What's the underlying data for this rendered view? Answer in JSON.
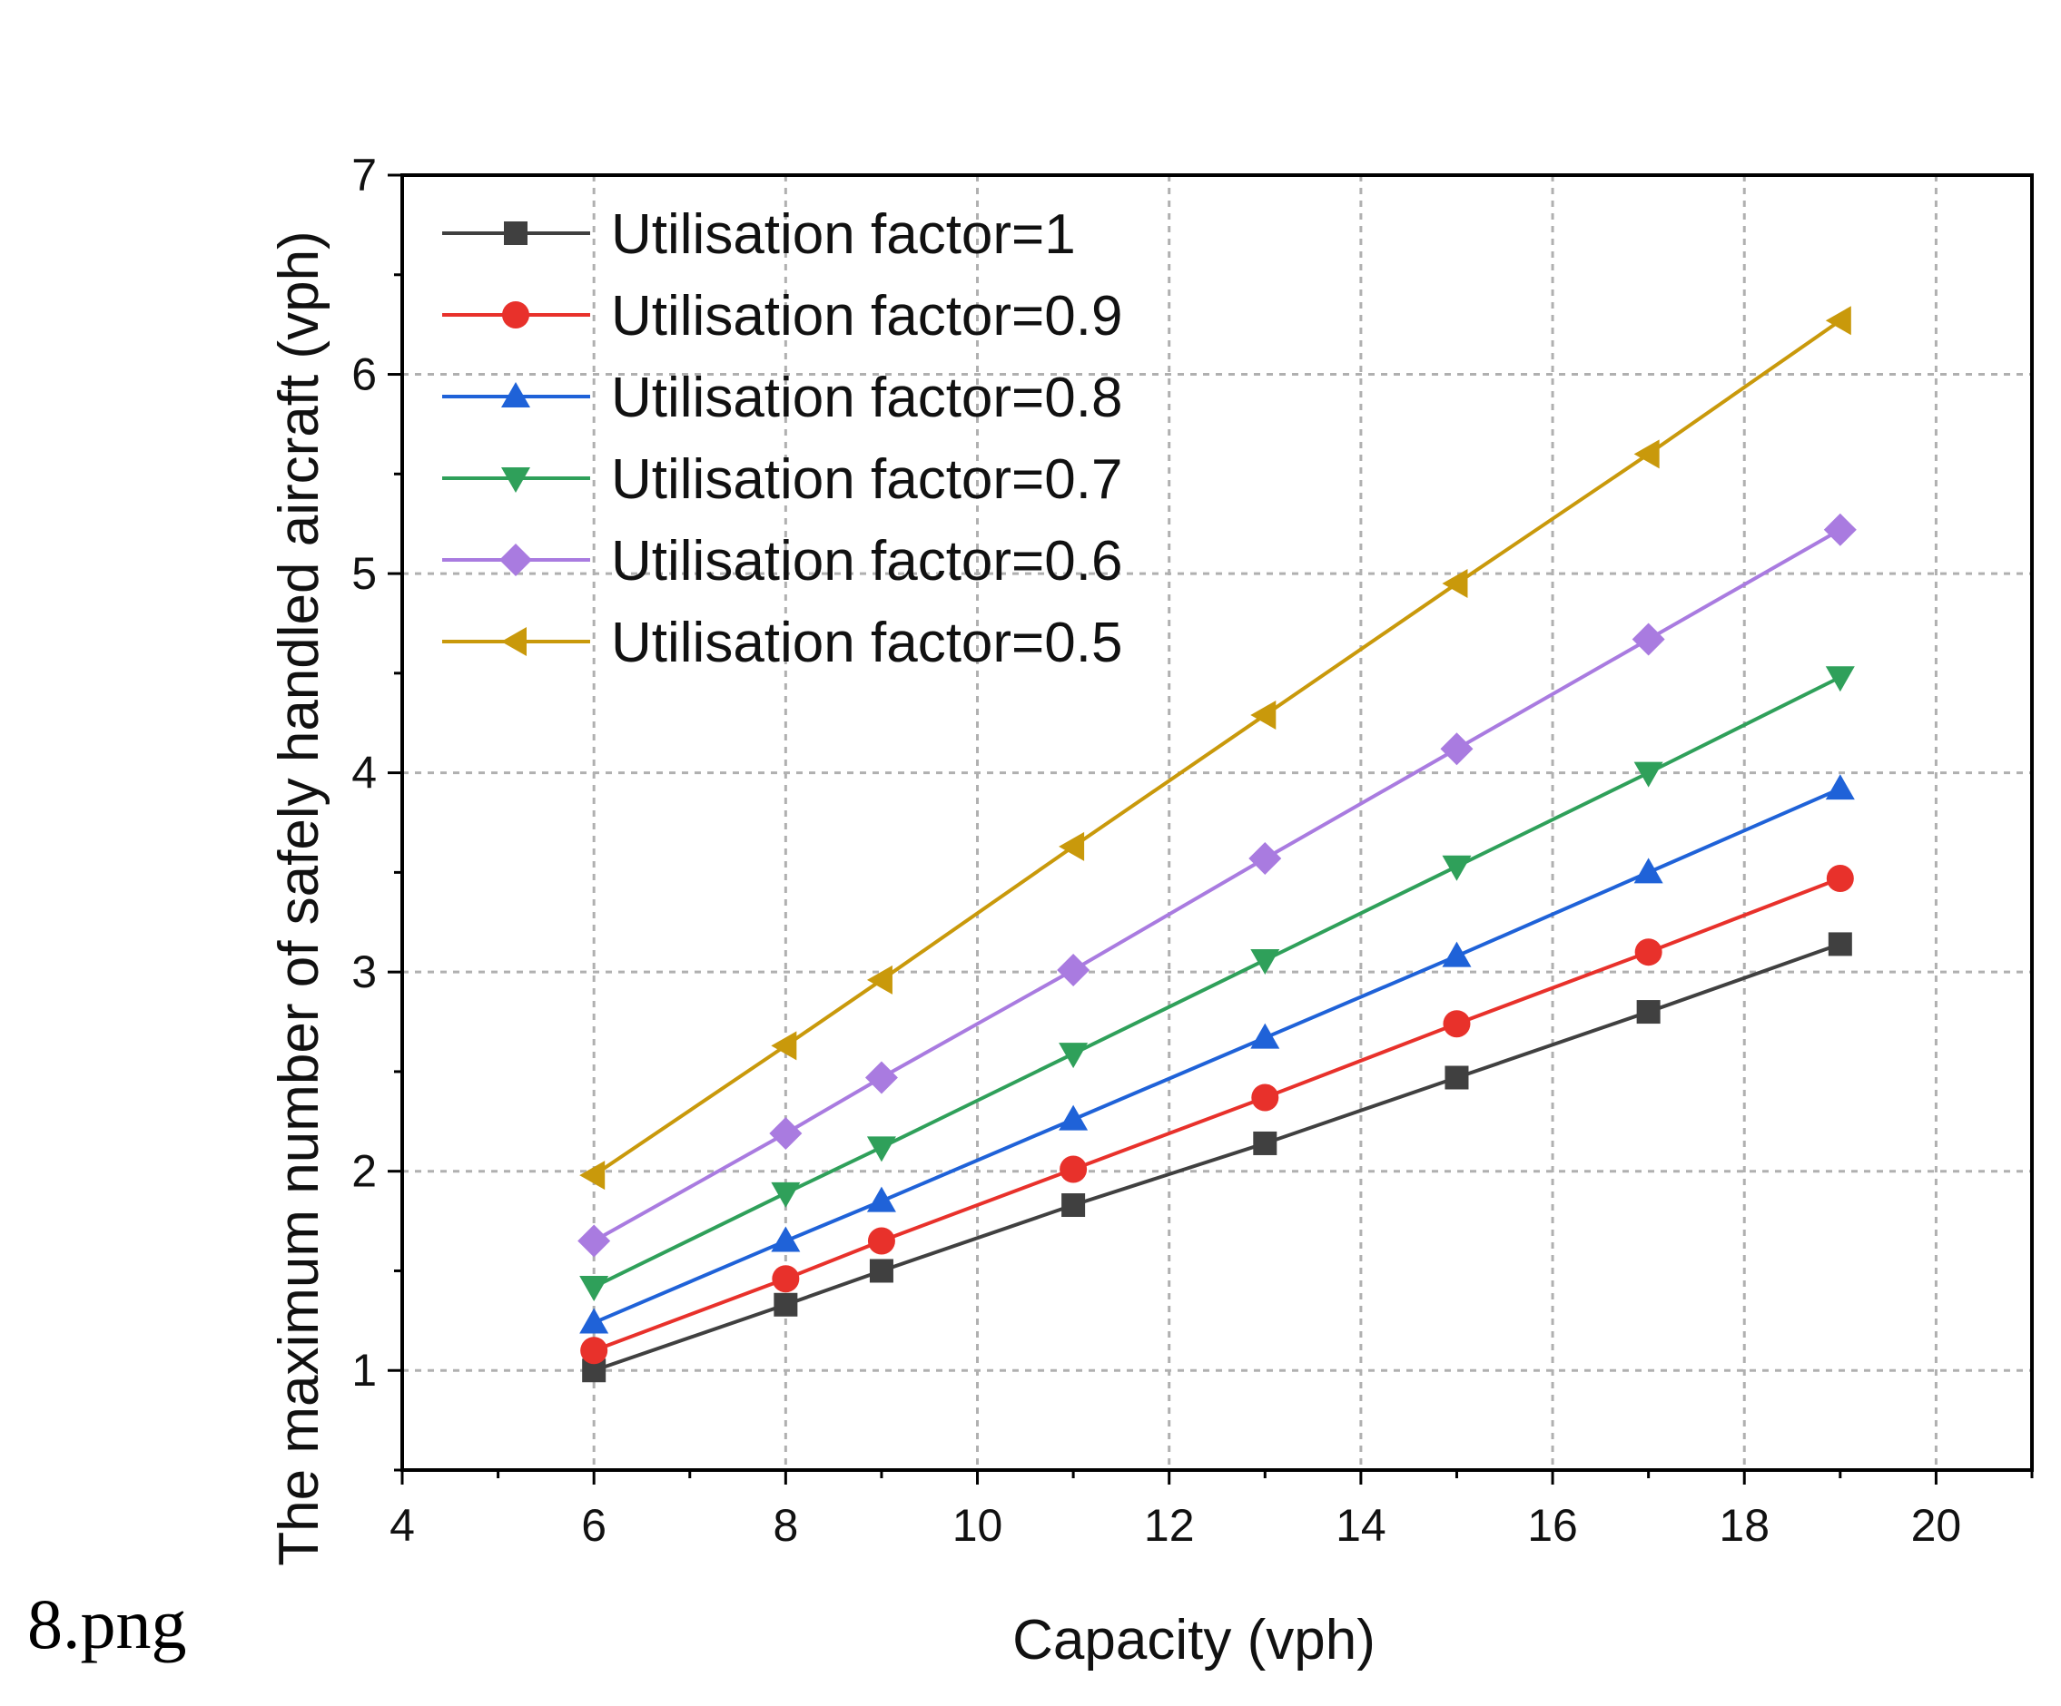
{
  "caption": "8.png",
  "chart_data": {
    "type": "line",
    "title": "",
    "xlabel": "Capacity (vph)",
    "ylabel": "The maximum number of safely handled aircraft (vph)",
    "xlim": [
      4,
      21
    ],
    "ylim": [
      0.5,
      7
    ],
    "xticks": [
      4,
      6,
      8,
      10,
      12,
      14,
      16,
      18,
      20
    ],
    "yticks": [
      1,
      2,
      3,
      4,
      5,
      6,
      7
    ],
    "grid": true,
    "legend_position": "top-left",
    "x": [
      6,
      8,
      9,
      11,
      13,
      15,
      17,
      19
    ],
    "series": [
      {
        "name": "Utilisation factor=1",
        "color": "#404040",
        "marker": "square",
        "values": [
          1.0,
          1.33,
          1.5,
          1.83,
          2.14,
          2.47,
          2.8,
          3.14
        ]
      },
      {
        "name": "Utilisation factor=0.9",
        "color": "#e8312b",
        "marker": "circle",
        "values": [
          1.1,
          1.46,
          1.65,
          2.01,
          2.37,
          2.74,
          3.1,
          3.47
        ]
      },
      {
        "name": "Utilisation factor=0.8",
        "color": "#1f62d8",
        "marker": "triangle-up",
        "values": [
          1.24,
          1.65,
          1.85,
          2.26,
          2.67,
          3.08,
          3.5,
          3.92
        ]
      },
      {
        "name": "Utilisation factor=0.7",
        "color": "#2fa05a",
        "marker": "triangle-down",
        "values": [
          1.42,
          1.89,
          2.12,
          2.59,
          3.06,
          3.53,
          4.0,
          4.48
        ]
      },
      {
        "name": "Utilisation factor=0.6",
        "color": "#a97be0",
        "marker": "diamond",
        "values": [
          1.65,
          2.19,
          2.47,
          3.01,
          3.57,
          4.12,
          4.67,
          5.22
        ]
      },
      {
        "name": "Utilisation factor=0.5",
        "color": "#c9990b",
        "marker": "triangle-left",
        "values": [
          1.98,
          2.63,
          2.96,
          3.63,
          4.29,
          4.95,
          5.6,
          6.27
        ]
      }
    ]
  }
}
